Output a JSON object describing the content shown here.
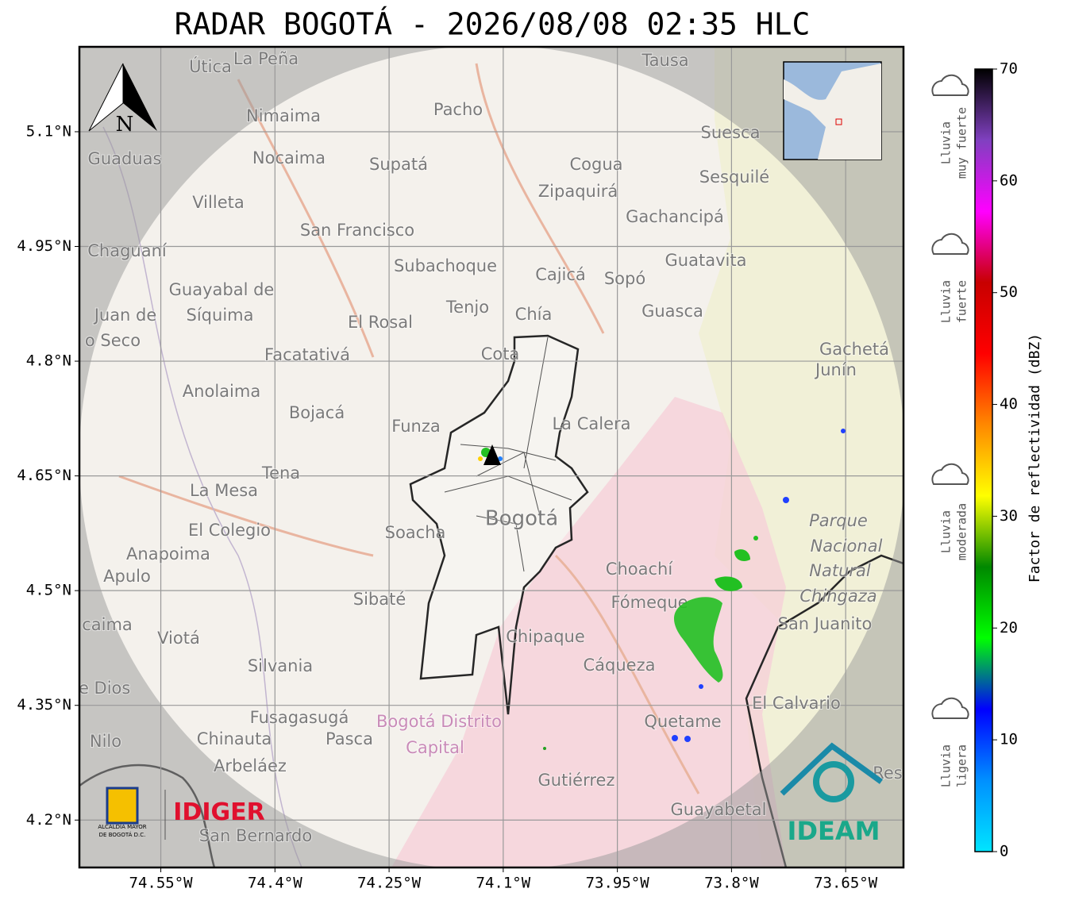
{
  "header": {
    "title": "RADAR BOGOTÁ - 2026/08/08 02:35 HLC"
  },
  "map": {
    "lon_range": [
      -74.657,
      -73.574
    ],
    "lat_range": [
      5.211,
      4.138
    ],
    "lon_ticks": [
      {
        "value": -74.55,
        "label": "74.55°W"
      },
      {
        "value": -74.4,
        "label": "74.4°W"
      },
      {
        "value": -74.25,
        "label": "74.25°W"
      },
      {
        "value": -74.1,
        "label": "74.1°W"
      },
      {
        "value": -73.95,
        "label": "73.95°W"
      },
      {
        "value": -73.8,
        "label": "73.8°W"
      },
      {
        "value": -73.65,
        "label": "73.65°W"
      }
    ],
    "lat_ticks": [
      {
        "value": 5.1,
        "label": "5.1°N"
      },
      {
        "value": 4.95,
        "label": "4.95°N"
      },
      {
        "value": 4.8,
        "label": "4.8°N"
      },
      {
        "value": 4.65,
        "label": "4.65°N"
      },
      {
        "value": 4.5,
        "label": "4.5°N"
      },
      {
        "value": 4.35,
        "label": "4.35°N"
      },
      {
        "value": 4.2,
        "label": "4.2°N"
      }
    ],
    "grid": true,
    "north": "N",
    "places": [
      "Útica",
      "La Peña",
      "Tausa",
      "Pacho",
      "Nimaima",
      "Suesca",
      "Guaduas",
      "Nocaima",
      "Supatá",
      "Cogua",
      "Sesquilé",
      "Zipaquirá",
      "Villeta",
      "Gachancipá",
      "San Francisco",
      "Chaguaní",
      "Guatavita",
      "Subachoque",
      "Cajicá",
      "Sopó",
      "Guayabal de",
      "Síquima",
      "Juan de",
      "Tenjo",
      "Guasca",
      "Chía",
      "El Rosal",
      "o Seco",
      "Facatativá",
      "Cota",
      "Gachetá",
      "Junín",
      "Anolaima",
      "Bojacá",
      "Funza",
      "La Calera",
      "Tena",
      "La Mesa",
      "Bogotá",
      "Parque",
      "Soacha",
      "El Colegio",
      "Nacional",
      "Anapoima",
      "Apulo",
      "Choachí",
      "Natural",
      "Chingaza",
      "Sibaté",
      "Fómeque",
      "San Juanito",
      "caima",
      "Viotá",
      "Chipaque",
      "Silvania",
      "Cáqueza",
      "de Dios",
      "El Calvario",
      "Fusagasugá",
      "Bogotá Distrito",
      "Quetame",
      "Nilo",
      "Chinauta",
      "Pasca",
      "Capital",
      "Arbeláez",
      "Gutiérrez",
      "Guayabetal",
      "San Bernardo",
      "Res"
    ]
  },
  "colorbar": {
    "label": "Factor de reflectividad (dBZ)",
    "range": [
      0,
      70
    ],
    "ticks": [
      0,
      10,
      20,
      30,
      40,
      50,
      60,
      70
    ],
    "colors": [
      "#00e5ff",
      "#0090ff",
      "#0000ff",
      "#00ff00",
      "#008800",
      "#ffff00",
      "#ff8800",
      "#ff0000",
      "#c80000",
      "#ff00ff",
      "#8040c0",
      "#000000"
    ]
  },
  "rain_levels": [
    [
      "Lluvia",
      "muy fuerte"
    ],
    [
      "Lluvia",
      "fuerte"
    ],
    [
      "Lluvia",
      "moderada"
    ],
    [
      "Lluvia",
      "ligera"
    ]
  ],
  "logos": {
    "alcaldia": [
      "ALCALDÍA MAYOR",
      "DE BOGOTÁ D.C."
    ],
    "idiger": "IDIGER",
    "ideam": "IDEAM"
  }
}
